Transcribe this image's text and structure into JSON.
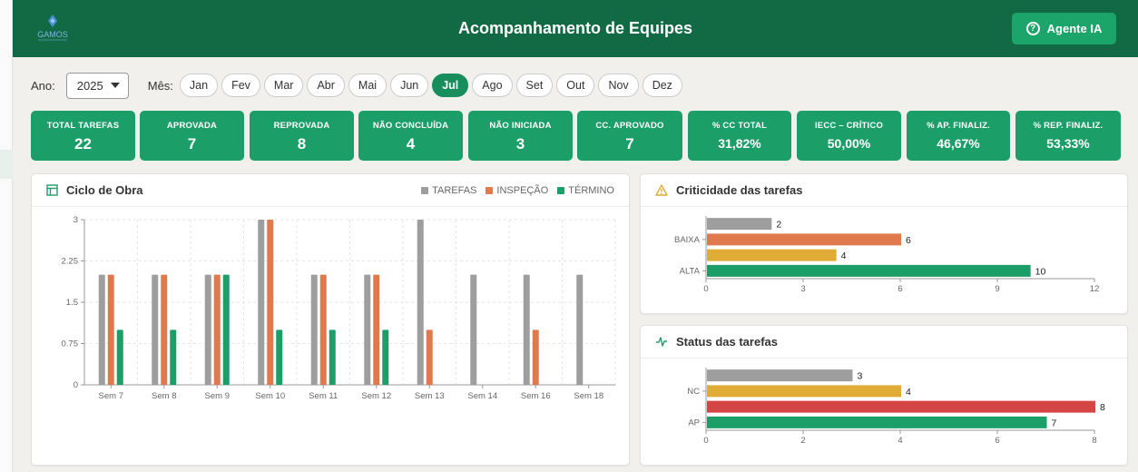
{
  "header": {
    "title": "Acompanhamento de Equipes",
    "logo_text": "GAMOS",
    "agent_button": "Agente IA"
  },
  "filters": {
    "year_label": "Ano:",
    "year_value": "2025",
    "month_label": "Mês:",
    "months": [
      "Jan",
      "Fev",
      "Mar",
      "Abr",
      "Mai",
      "Jun",
      "Jul",
      "Ago",
      "Set",
      "Out",
      "Nov",
      "Dez"
    ],
    "selected_month": "Jul"
  },
  "kpis": [
    {
      "label": "TOTAL TAREFAS",
      "value": "22"
    },
    {
      "label": "APROVADA",
      "value": "7"
    },
    {
      "label": "REPROVADA",
      "value": "8"
    },
    {
      "label": "NÃO CONCLUÍDA",
      "value": "4"
    },
    {
      "label": "NÃO INICIADA",
      "value": "3"
    },
    {
      "label": "CC. APROVADO",
      "value": "7"
    },
    {
      "label": "% CC TOTAL",
      "value": "31,82%"
    },
    {
      "label": "IECC – CRÍTICO",
      "value": "50,00%"
    },
    {
      "label": "% AP. FINALIZ.",
      "value": "46,67%"
    },
    {
      "label": "% REP. FINALIZ.",
      "value": "53,33%"
    }
  ],
  "colors": {
    "header": "#126a44",
    "kpi": "#1c9e68",
    "gray": "#9e9e9e",
    "orange": "#e07a4d",
    "yellow": "#e0ac36",
    "green": "#1c9e68",
    "red": "#d64545"
  },
  "ciclo": {
    "title": "Ciclo de Obra",
    "icon": "table-layout-icon",
    "chart_data": {
      "type": "bar",
      "categories": [
        "Sem 7",
        "Sem 8",
        "Sem 9",
        "Sem 10",
        "Sem 11",
        "Sem 12",
        "Sem 13",
        "Sem 14",
        "Sem 16",
        "Sem 18"
      ],
      "series": [
        {
          "name": "TAREFAS",
          "color": "#9e9e9e",
          "values": [
            2,
            2,
            2,
            3,
            2,
            2,
            3,
            2,
            2,
            2
          ]
        },
        {
          "name": "INSPEÇÃO",
          "color": "#e07a4d",
          "values": [
            2,
            2,
            2,
            3,
            2,
            2,
            1,
            0,
            1,
            0
          ]
        },
        {
          "name": "TÉRMINO",
          "color": "#1c9e68",
          "values": [
            1,
            1,
            2,
            1,
            1,
            1,
            0,
            0,
            0,
            0
          ]
        }
      ],
      "ylim": [
        0,
        3
      ],
      "yticks": [
        "0",
        "0.75",
        "1.5",
        "2.25",
        "3"
      ],
      "grid": true,
      "legend": "top-right"
    }
  },
  "criticidade": {
    "title": "Criticidade das tarefas",
    "icon": "warning-triangle-icon",
    "chart_data": {
      "type": "bar",
      "orientation": "horizontal",
      "bars": [
        {
          "value": 2,
          "color": "#9e9e9e"
        },
        {
          "value": 6,
          "color": "#e07a4d"
        },
        {
          "value": 4,
          "color": "#e0ac36"
        },
        {
          "value": 10,
          "color": "#1c9e68"
        }
      ],
      "category_labels": [
        "",
        "BAIXA",
        "",
        "ALTA"
      ],
      "xlim": [
        0,
        12
      ],
      "xticks": [
        "0",
        "3",
        "6",
        "9",
        "12"
      ]
    }
  },
  "status": {
    "title": "Status das tarefas",
    "icon": "activity-pulse-icon",
    "chart_data": {
      "type": "bar",
      "orientation": "horizontal",
      "bars": [
        {
          "value": 3,
          "color": "#9e9e9e"
        },
        {
          "value": 4,
          "color": "#e0ac36"
        },
        {
          "value": 8,
          "color": "#d64545"
        },
        {
          "value": 7,
          "color": "#1c9e68"
        }
      ],
      "category_labels": [
        "",
        "NC",
        "",
        "AP"
      ],
      "xlim": [
        0,
        8
      ],
      "xticks": [
        "0",
        "2",
        "4",
        "6",
        "8"
      ]
    }
  }
}
